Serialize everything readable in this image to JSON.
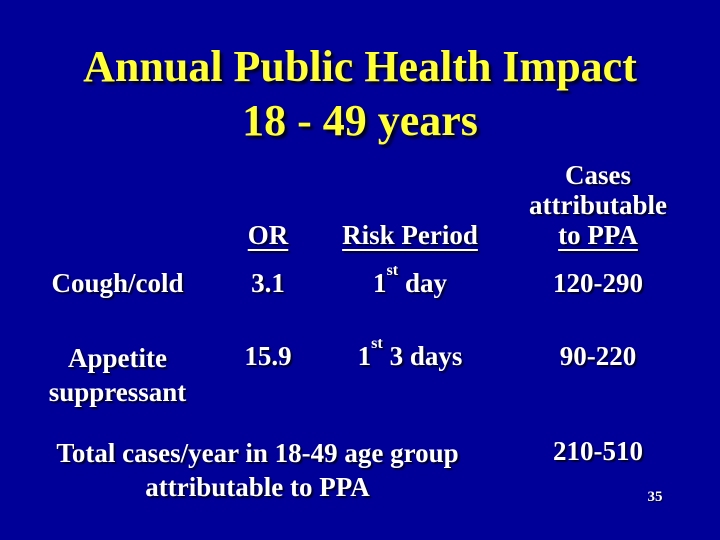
{
  "slide": {
    "title_line1": "Annual Public Health Impact",
    "title_line2": "18 - 49 years",
    "page_number": "35"
  },
  "table": {
    "headers": {
      "or": "OR",
      "risk_period": "Risk Period",
      "cases_line1": "Cases",
      "cases_line2": "attributable",
      "cases_line3": "to PPA"
    },
    "rows": [
      {
        "label_line1": "Cough/cold",
        "label_line2": "",
        "or": "3.1",
        "risk_prefix": "1",
        "risk_sup": "st",
        "risk_rest": " day",
        "cases": "120-290"
      },
      {
        "label_line1": "Appetite",
        "label_line2": "suppressant",
        "or": "15.9",
        "risk_prefix": "1",
        "risk_sup": "st",
        "risk_rest": " 3 days",
        "cases": "90-220"
      }
    ],
    "total": {
      "label_line1": "Total cases/year in 18-49 age group",
      "label_line2": "attributable to PPA",
      "value": "210-510"
    }
  },
  "colors": {
    "background": "#000099",
    "title_text": "#FFFF33",
    "body_text": "#FFFFFF"
  }
}
